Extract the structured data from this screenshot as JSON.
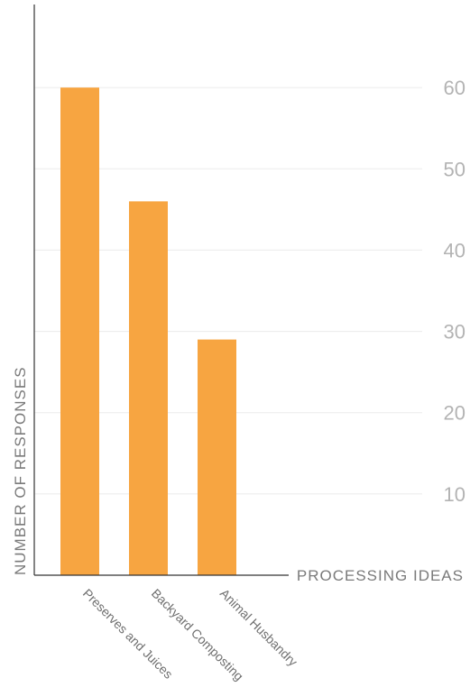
{
  "chart_data": {
    "type": "bar",
    "categories": [
      "Preserves and Juices",
      "Backyard Composting",
      "Animal Husbandry"
    ],
    "values": [
      60,
      46,
      29
    ],
    "xlabel": "PROCESSING IDEAS",
    "ylabel": "NUMBER OF RESPONSES",
    "ylim": [
      0,
      70
    ],
    "yticks": [
      10,
      20,
      30,
      40,
      50,
      60
    ],
    "grid": true,
    "bar_color": "#f7a541",
    "y_axis_side": "right"
  }
}
